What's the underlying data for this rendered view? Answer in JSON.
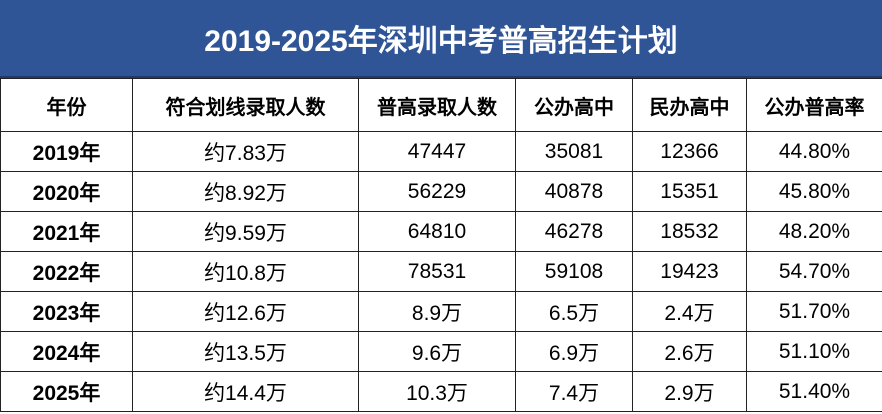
{
  "header": {
    "title": "2019-2025年深圳中考普高招生计划"
  },
  "table": {
    "columns": [
      "年份",
      "符合划线录取人数",
      "普高录取人数",
      "公办高中",
      "民办高中",
      "公办普高率"
    ],
    "rows": [
      [
        "2019年",
        "约7.83万",
        "47447",
        "35081",
        "12366",
        "44.80%"
      ],
      [
        "2020年",
        "约8.92万",
        "56229",
        "40878",
        "15351",
        "45.80%"
      ],
      [
        "2021年",
        "约9.59万",
        "64810",
        "46278",
        "18532",
        "48.20%"
      ],
      [
        "2022年",
        "约10.8万",
        "78531",
        "59108",
        "19423",
        "54.70%"
      ],
      [
        "2023年",
        "约12.6万",
        "8.9万",
        "6.5万",
        "2.4万",
        "51.70%"
      ],
      [
        "2024年",
        "约13.5万",
        "9.6万",
        "6.9万",
        "2.6万",
        "51.10%"
      ],
      [
        "2025年",
        "约14.4万",
        "10.3万",
        "7.4万",
        "2.9万",
        "51.40%"
      ]
    ]
  }
}
